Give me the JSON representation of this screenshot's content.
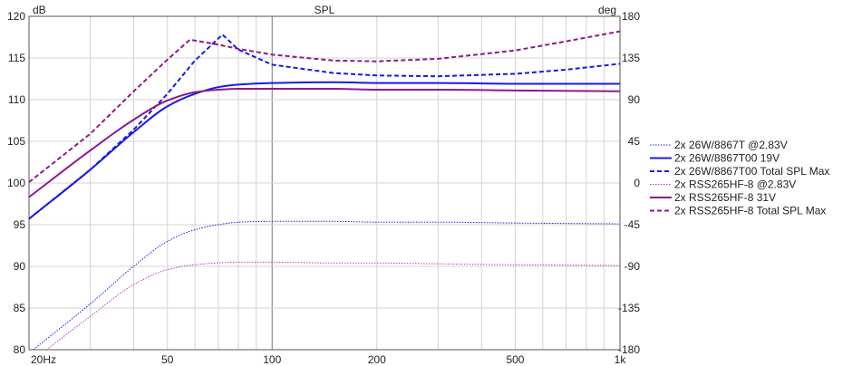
{
  "chart_data": {
    "type": "line",
    "title": "SPL",
    "ylabel_left": "dB",
    "ylabel_right": "deg",
    "x_scale": "log",
    "xlim": [
      20,
      1000
    ],
    "ylim_left": [
      80,
      120
    ],
    "ylim_right": [
      -180,
      180
    ],
    "grid": true,
    "legend_position": "right",
    "x_ticks": [
      {
        "value": 20,
        "label": "20Hz"
      },
      {
        "value": 50,
        "label": "50"
      },
      {
        "value": 100,
        "label": "100"
      },
      {
        "value": 200,
        "label": "200"
      },
      {
        "value": 500,
        "label": "500"
      },
      {
        "value": 1000,
        "label": "1k"
      }
    ],
    "y_ticks_left": [
      "80",
      "85",
      "90",
      "95",
      "100",
      "105",
      "110",
      "115",
      "120"
    ],
    "y_ticks_right": [
      "-180",
      "-135",
      "-90",
      "-45",
      "0",
      "45",
      "90",
      "135",
      "180"
    ],
    "series": [
      {
        "name": "2x 26W/8867T @2.83V",
        "color": "#1a1ae6",
        "style": "thin",
        "points": [
          [
            20,
            79.6
          ],
          [
            30,
            85.5
          ],
          [
            40,
            90.0
          ],
          [
            50,
            93.0
          ],
          [
            60,
            94.4
          ],
          [
            70,
            95.0
          ],
          [
            80,
            95.3
          ],
          [
            100,
            95.4
          ],
          [
            150,
            95.4
          ],
          [
            200,
            95.3
          ],
          [
            300,
            95.3
          ],
          [
            500,
            95.2
          ],
          [
            1000,
            95.1
          ]
        ]
      },
      {
        "name": "2x 26W/8867T00 19V",
        "color": "#1a1ae6",
        "style": "solid",
        "points": [
          [
            20,
            95.7
          ],
          [
            30,
            101.6
          ],
          [
            40,
            106.1
          ],
          [
            50,
            109.2
          ],
          [
            60,
            110.7
          ],
          [
            70,
            111.5
          ],
          [
            80,
            111.8
          ],
          [
            100,
            112.0
          ],
          [
            150,
            112.1
          ],
          [
            200,
            112.0
          ],
          [
            300,
            112.0
          ],
          [
            500,
            111.9
          ],
          [
            1000,
            111.9
          ]
        ]
      },
      {
        "name": "2x 26W/8867T00 Total SPL Max",
        "color": "#1a1ae6",
        "style": "dashed",
        "points": [
          [
            20,
            95.7
          ],
          [
            30,
            101.6
          ],
          [
            40,
            106.4
          ],
          [
            50,
            110.7
          ],
          [
            60,
            114.7
          ],
          [
            72,
            117.8
          ],
          [
            80,
            116.0
          ],
          [
            100,
            114.2
          ],
          [
            150,
            113.2
          ],
          [
            200,
            112.9
          ],
          [
            300,
            112.8
          ],
          [
            500,
            113.1
          ],
          [
            700,
            113.6
          ],
          [
            1000,
            114.3
          ]
        ]
      },
      {
        "name": "2x RSS265HF-8 @2.83V",
        "color": "#b040b0",
        "style": "thin",
        "points": [
          [
            20,
            78.4
          ],
          [
            30,
            84.0
          ],
          [
            40,
            87.8
          ],
          [
            50,
            89.6
          ],
          [
            60,
            90.2
          ],
          [
            80,
            90.5
          ],
          [
            100,
            90.5
          ],
          [
            150,
            90.4
          ],
          [
            200,
            90.4
          ],
          [
            300,
            90.3
          ],
          [
            500,
            90.2
          ],
          [
            1000,
            90.1
          ]
        ]
      },
      {
        "name": "2x RSS265HF-8 31V",
        "color": "#8c1a8c",
        "style": "solid",
        "points": [
          [
            20,
            98.3
          ],
          [
            30,
            103.9
          ],
          [
            40,
            107.6
          ],
          [
            50,
            109.9
          ],
          [
            60,
            110.9
          ],
          [
            70,
            111.2
          ],
          [
            80,
            111.3
          ],
          [
            100,
            111.3
          ],
          [
            150,
            111.3
          ],
          [
            200,
            111.2
          ],
          [
            300,
            111.2
          ],
          [
            500,
            111.1
          ],
          [
            1000,
            111.0
          ]
        ]
      },
      {
        "name": "2x RSS265HF-8 Total SPL Max",
        "color": "#8c1a8c",
        "style": "dashed",
        "points": [
          [
            20,
            100.1
          ],
          [
            30,
            105.9
          ],
          [
            40,
            111.0
          ],
          [
            50,
            114.8
          ],
          [
            58,
            117.2
          ],
          [
            70,
            116.6
          ],
          [
            80,
            116.1
          ],
          [
            100,
            115.4
          ],
          [
            150,
            114.7
          ],
          [
            200,
            114.6
          ],
          [
            300,
            114.9
          ],
          [
            500,
            115.9
          ],
          [
            700,
            117.0
          ],
          [
            1000,
            118.2
          ]
        ]
      }
    ]
  }
}
